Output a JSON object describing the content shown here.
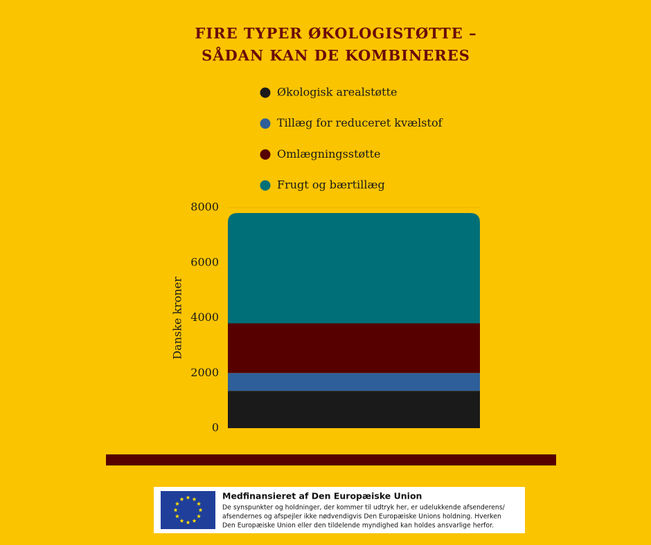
{
  "chart_data": {
    "type": "stacked-bar",
    "title": [
      "FIRE TYPER ØKOLOGISTØTTE –",
      "SÅDAN KAN DE KOMBINERES"
    ],
    "y_label": "Danske kroner",
    "categories": [
      null
    ],
    "series": [
      {
        "name": "Økologisk arealstøtte",
        "color": "#1a1a1a",
        "values": [
          1350
        ]
      },
      {
        "name": "Tillæg for reduceret kvælstof",
        "color": "#2e5f9a",
        "values": [
          650
        ]
      },
      {
        "name": "Omlægningsstøtte",
        "color": "#560000",
        "values": [
          1800
        ]
      },
      {
        "name": "Frugt og bærtillæg",
        "color": "#006f77",
        "values": [
          4000
        ]
      }
    ],
    "ylim": [
      0,
      8000
    ],
    "yticks": [
      0,
      2000,
      4000,
      6000,
      8000
    ],
    "grid": true
  },
  "footer": {
    "title": "Medfinansieret af Den Europæiske Union",
    "lines": [
      "De synspunkter og holdninger, der kommer til udtryk her, er udelukkende afsenderens/",
      "afsendernes og afspejler ikke nødvendigvis Den Europæiske Unions holdning. Hverken",
      "Den Europæiske Union eller den tildelende myndighed kan holdes ansvarlige herfor."
    ]
  }
}
